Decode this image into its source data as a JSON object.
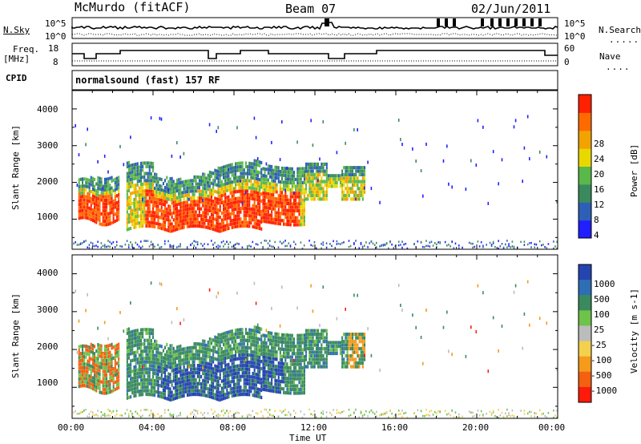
{
  "header": {
    "station": "McMurdo (fitACF)",
    "beam": "Beam 07",
    "date": "02/Jun/2011"
  },
  "status_panels": {
    "left_labels": {
      "nsky": "N.Sky",
      "freq": "Freq.",
      "mhz": "[MHz]",
      "cpid": "CPID"
    },
    "right_labels": {
      "nsearch": "N.Search",
      "nave": "Nave"
    },
    "noise_ticks_left": [
      "10^5",
      "10^0"
    ],
    "noise_ticks_right": [
      "10^5",
      "10^0"
    ],
    "freq_ticks": [
      "18",
      "8"
    ],
    "nave_ticks": [
      "60",
      "0"
    ],
    "cpid_text": "normalsound (fast) 157 RF"
  },
  "colorbars": {
    "power": {
      "label": "Power [dB]",
      "ticks": [
        "28",
        "24",
        "20",
        "16",
        "12",
        "8",
        "4"
      ],
      "colors": [
        "#1f1fff",
        "#2e5fb6",
        "#3a8a5e",
        "#59b84a",
        "#e8d800",
        "#f2a300",
        "#ff6a00",
        "#ff2000"
      ]
    },
    "velocity": {
      "label": "Velocity [m s-1]",
      "ticks": [
        "1000",
        "500",
        "100",
        "25",
        "-25",
        "-100",
        "-500",
        "-1000"
      ],
      "colors": [
        "#2445b0",
        "#2e6eb4",
        "#3a8a5e",
        "#6fc24a",
        "#bcbcbc",
        "#f3d04d",
        "#f59a1a",
        "#f26010",
        "#ff1a0a"
      ]
    }
  },
  "chart_data": [
    {
      "type": "heatmap",
      "title": "Power",
      "ylabel": "Slant Range [km]",
      "xlabel": "Time UT",
      "x_ticks": [
        "00:00",
        "04:00",
        "08:00",
        "12:00",
        "16:00",
        "20:00",
        "00:00"
      ],
      "y_ticks": [
        "1000",
        "2000",
        "3000",
        "4000"
      ],
      "xlim_hours": [
        0,
        24
      ],
      "ylim_km": [
        180,
        4500
      ],
      "dense_echo_region_hours": [
        0.2,
        14.6
      ],
      "dense_echo_range_km": [
        600,
        2600
      ]
    },
    {
      "type": "heatmap",
      "title": "Velocity",
      "ylabel": "Slant Range [km]",
      "xlabel": "Time UT",
      "x_ticks": [
        "00:00",
        "04:00",
        "08:00",
        "12:00",
        "16:00",
        "20:00",
        "00:00"
      ],
      "y_ticks": [
        "1000",
        "2000",
        "3000",
        "4000"
      ],
      "xlim_hours": [
        0,
        24
      ],
      "ylim_km": [
        180,
        4500
      ]
    }
  ]
}
